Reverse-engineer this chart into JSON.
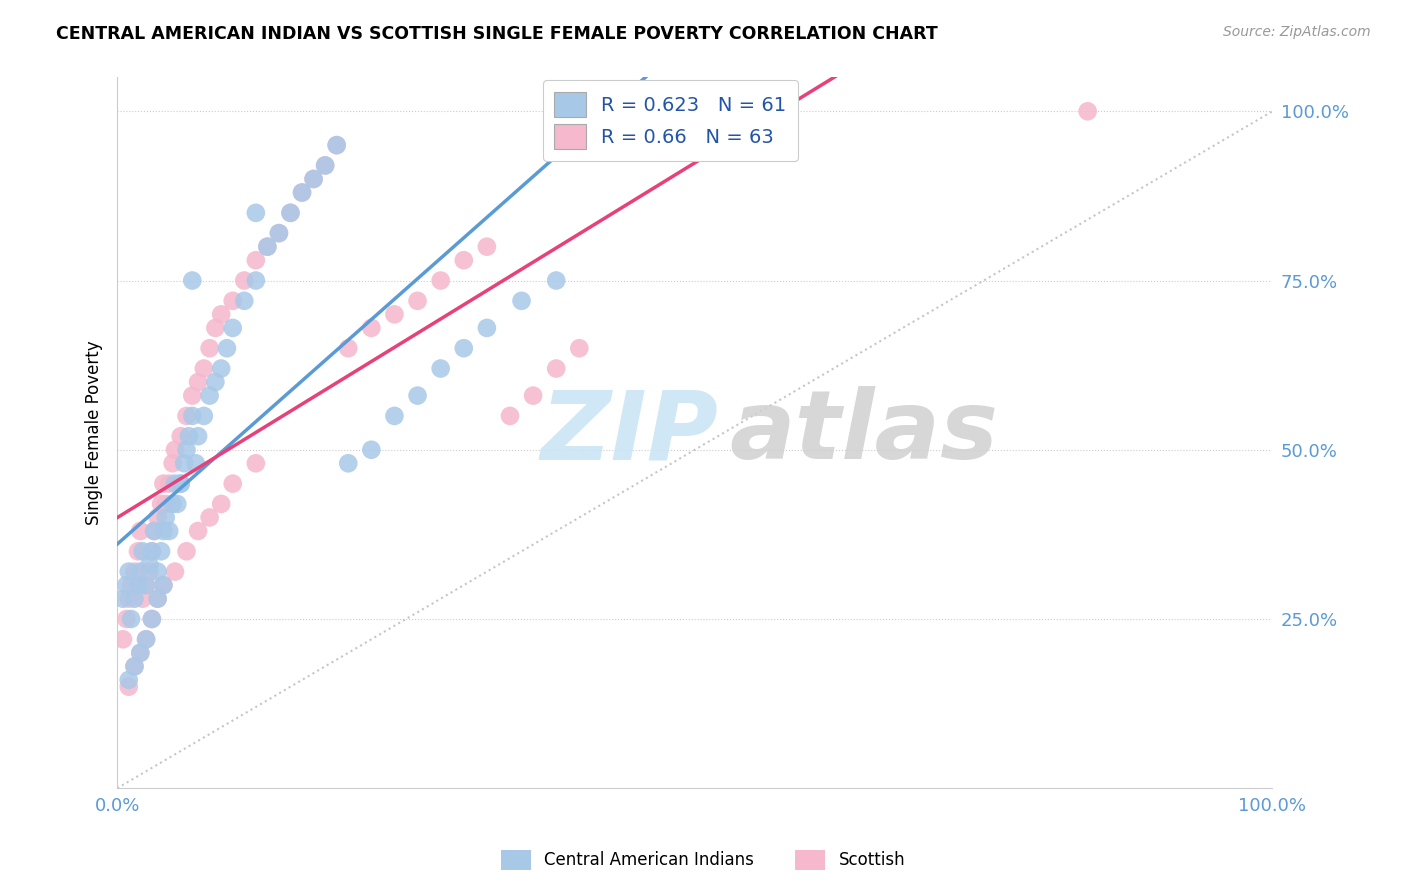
{
  "title": "CENTRAL AMERICAN INDIAN VS SCOTTISH SINGLE FEMALE POVERTY CORRELATION CHART",
  "source": "Source: ZipAtlas.com",
  "ylabel": "Single Female Poverty",
  "R_blue": 0.623,
  "N_blue": 61,
  "R_pink": 0.66,
  "N_pink": 63,
  "blue_scatter_color": "#a8c8e8",
  "pink_scatter_color": "#f5b8cc",
  "blue_line_color": "#5b9bd5",
  "pink_line_color": "#e8417a",
  "gray_line_color": "#b8b8b8",
  "legend_text_color": "#2255aa",
  "tick_color": "#5b9bd5",
  "grid_color": "#cccccc",
  "watermark_zip_color": "#c8e4f5",
  "watermark_atlas_color": "#d0d0d0",
  "blue_x": [
    0.005,
    0.008,
    0.01,
    0.012,
    0.015,
    0.018,
    0.02,
    0.022,
    0.025,
    0.028,
    0.03,
    0.032,
    0.035,
    0.038,
    0.04,
    0.042,
    0.045,
    0.048,
    0.05,
    0.052,
    0.055,
    0.058,
    0.06,
    0.062,
    0.065,
    0.068,
    0.07,
    0.075,
    0.08,
    0.085,
    0.09,
    0.095,
    0.1,
    0.11,
    0.12,
    0.13,
    0.14,
    0.15,
    0.16,
    0.17,
    0.18,
    0.19,
    0.2,
    0.22,
    0.24,
    0.26,
    0.28,
    0.3,
    0.32,
    0.35,
    0.38,
    0.01,
    0.015,
    0.02,
    0.025,
    0.03,
    0.035,
    0.04,
    0.055,
    0.065,
    0.12
  ],
  "blue_y": [
    0.28,
    0.3,
    0.32,
    0.25,
    0.28,
    0.3,
    0.32,
    0.35,
    0.3,
    0.33,
    0.35,
    0.38,
    0.32,
    0.35,
    0.38,
    0.4,
    0.38,
    0.42,
    0.45,
    0.42,
    0.45,
    0.48,
    0.5,
    0.52,
    0.55,
    0.48,
    0.52,
    0.55,
    0.58,
    0.6,
    0.62,
    0.65,
    0.68,
    0.72,
    0.75,
    0.8,
    0.82,
    0.85,
    0.88,
    0.9,
    0.92,
    0.95,
    0.48,
    0.5,
    0.55,
    0.58,
    0.62,
    0.65,
    0.68,
    0.72,
    0.75,
    0.16,
    0.18,
    0.2,
    0.22,
    0.25,
    0.28,
    0.3,
    0.45,
    0.75,
    0.85
  ],
  "pink_x": [
    0.005,
    0.008,
    0.01,
    0.012,
    0.015,
    0.018,
    0.02,
    0.022,
    0.025,
    0.028,
    0.03,
    0.032,
    0.035,
    0.038,
    0.04,
    0.042,
    0.045,
    0.048,
    0.05,
    0.055,
    0.06,
    0.065,
    0.07,
    0.075,
    0.08,
    0.085,
    0.09,
    0.1,
    0.11,
    0.12,
    0.13,
    0.14,
    0.15,
    0.16,
    0.17,
    0.18,
    0.19,
    0.2,
    0.22,
    0.24,
    0.26,
    0.28,
    0.3,
    0.32,
    0.34,
    0.36,
    0.38,
    0.4,
    0.01,
    0.015,
    0.02,
    0.025,
    0.03,
    0.035,
    0.04,
    0.05,
    0.06,
    0.07,
    0.08,
    0.09,
    0.1,
    0.12,
    0.84
  ],
  "pink_y": [
    0.22,
    0.25,
    0.28,
    0.3,
    0.32,
    0.35,
    0.38,
    0.28,
    0.3,
    0.32,
    0.35,
    0.38,
    0.4,
    0.42,
    0.45,
    0.42,
    0.45,
    0.48,
    0.5,
    0.52,
    0.55,
    0.58,
    0.6,
    0.62,
    0.65,
    0.68,
    0.7,
    0.72,
    0.75,
    0.78,
    0.8,
    0.82,
    0.85,
    0.88,
    0.9,
    0.92,
    0.95,
    0.65,
    0.68,
    0.7,
    0.72,
    0.75,
    0.78,
    0.8,
    0.55,
    0.58,
    0.62,
    0.65,
    0.15,
    0.18,
    0.2,
    0.22,
    0.25,
    0.28,
    0.3,
    0.32,
    0.35,
    0.38,
    0.4,
    0.42,
    0.45,
    0.48,
    1.0
  ]
}
